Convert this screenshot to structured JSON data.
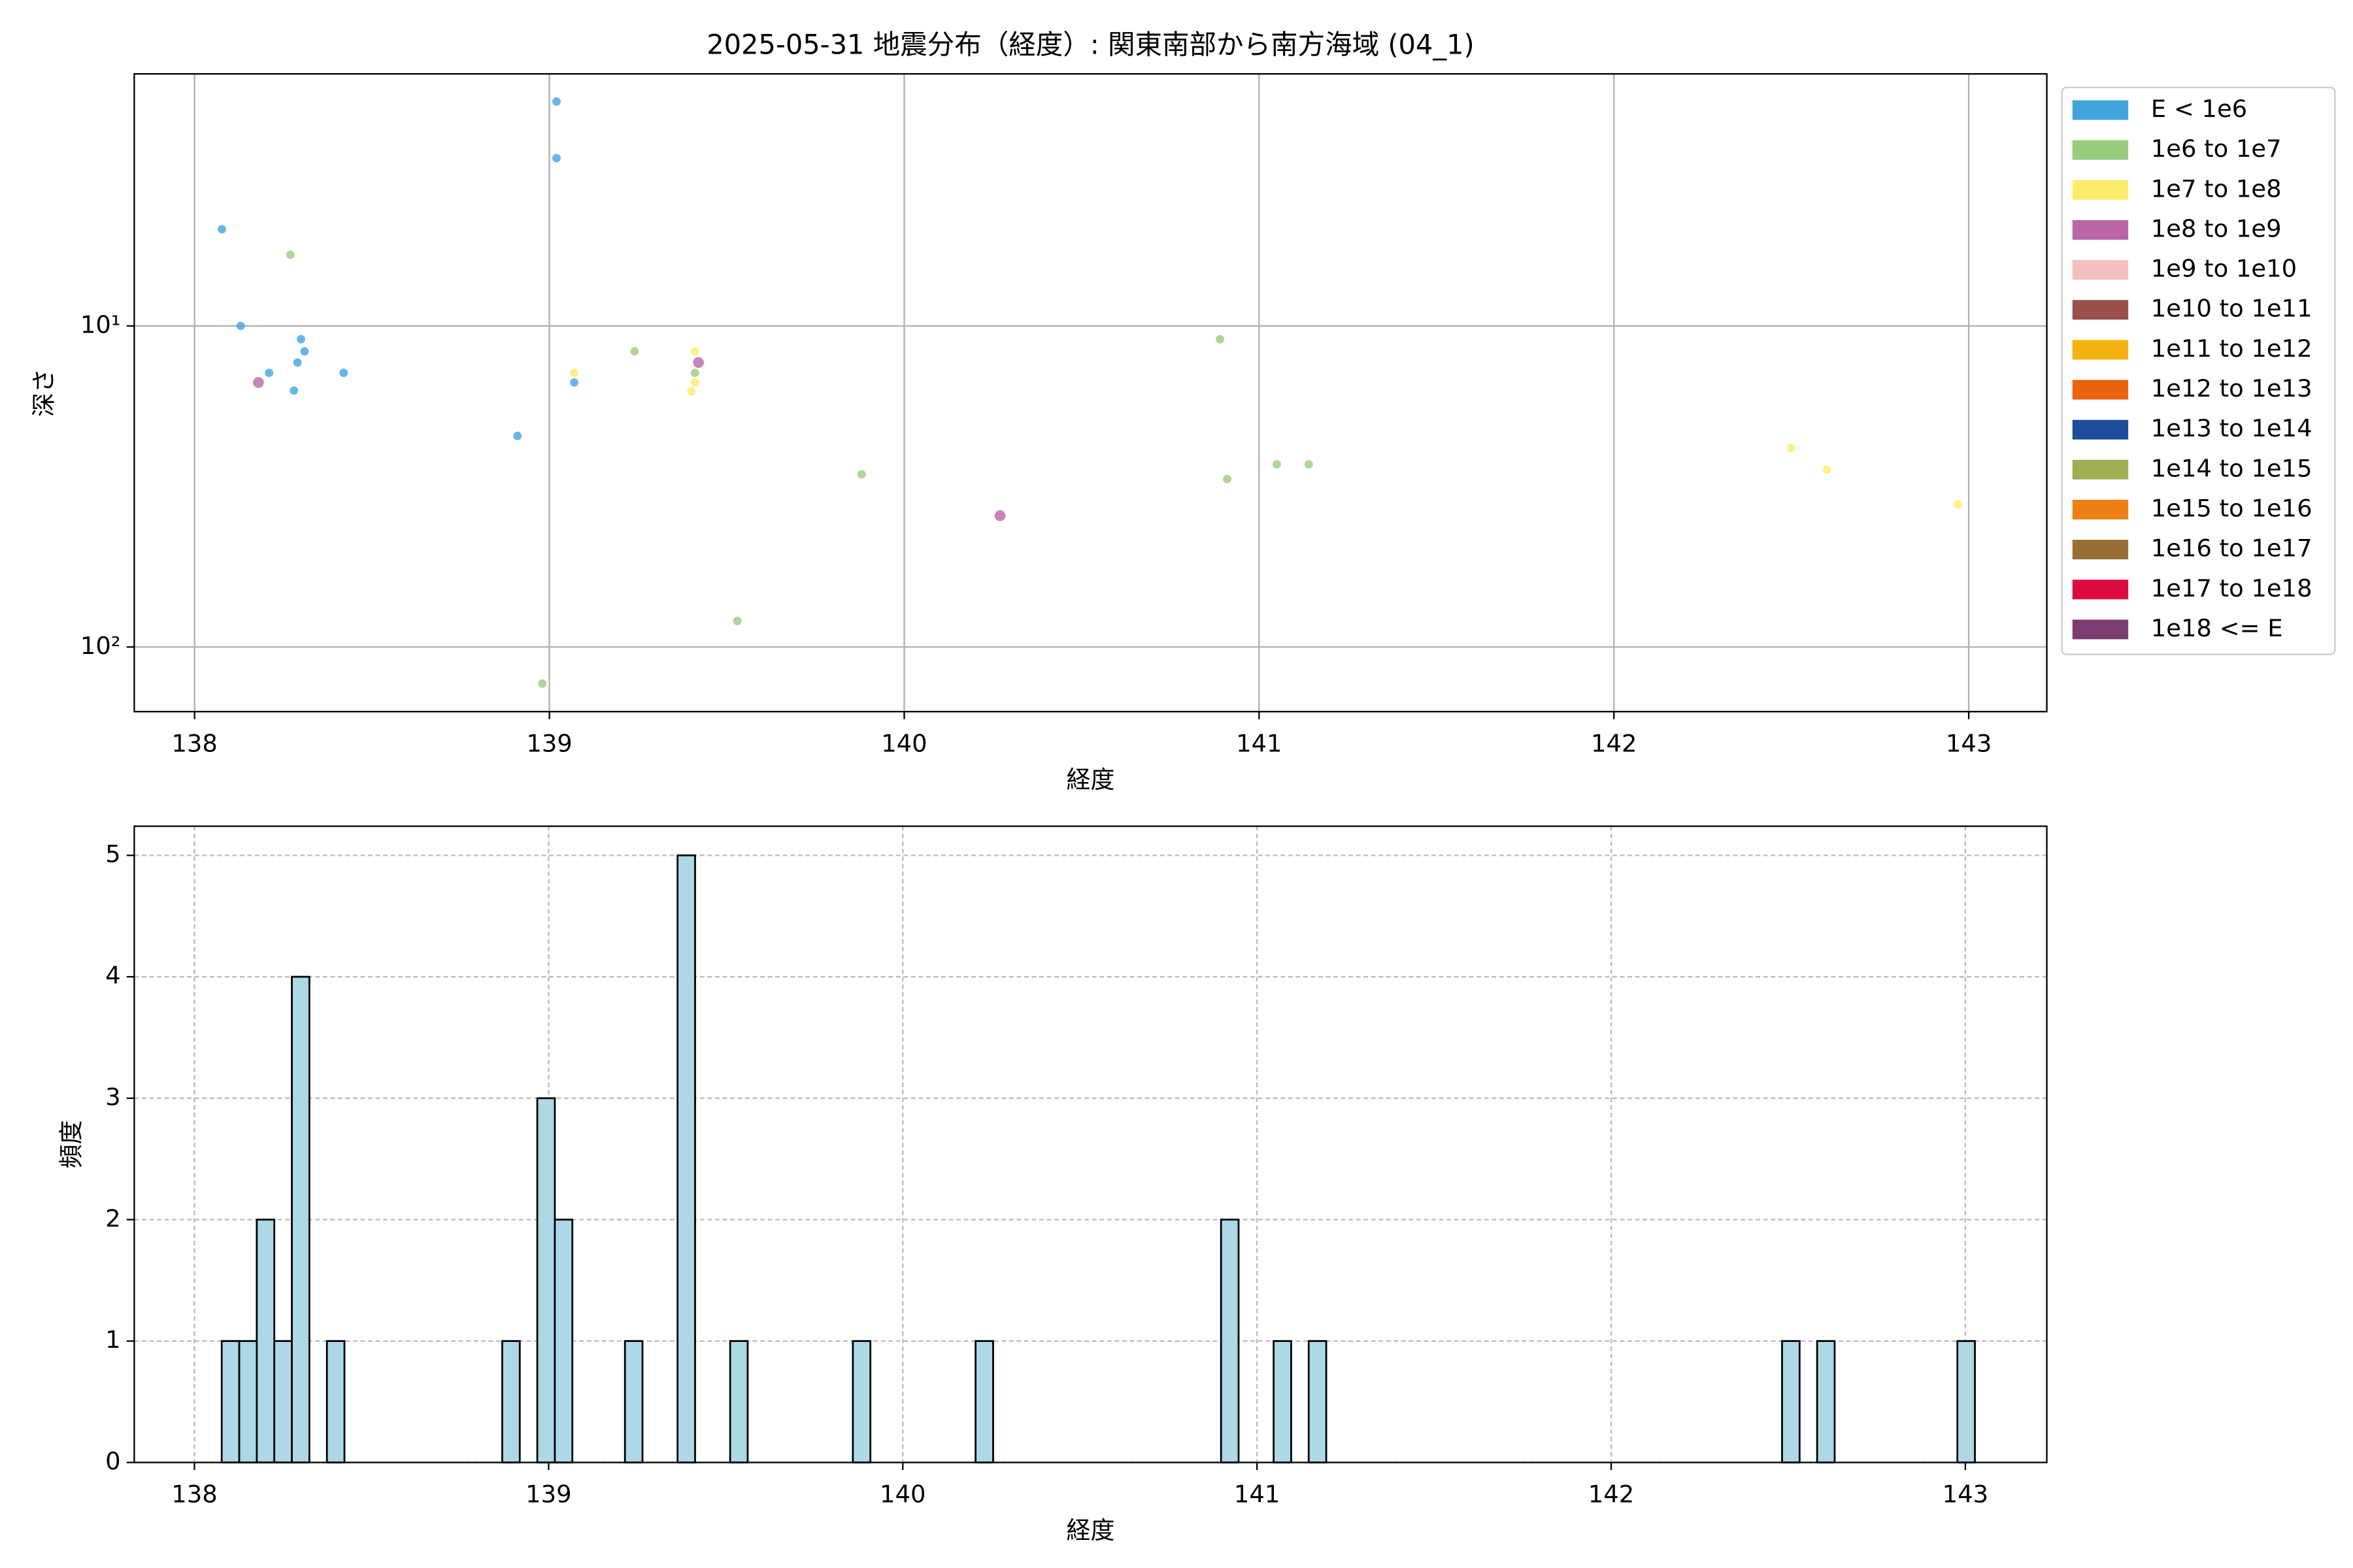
{
  "chart_data": [
    {
      "type": "scatter",
      "title": "2025-05-31 地震分布（経度）: 関東南部から南方海域 (04_1)",
      "xlabel": "経度",
      "ylabel": "深さ",
      "xlim": [
        137.83,
        143.22
      ],
      "xticks": [
        138,
        139,
        140,
        141,
        142,
        143
      ],
      "ylim": [
        1.64,
        159
      ],
      "ylog": true,
      "y_inverted": true,
      "yticks": [
        {
          "value": 10,
          "label": "10¹"
        },
        {
          "value": 100,
          "label": "10²"
        }
      ],
      "grid": true,
      "grid_linestyle": "solid",
      "legend": "outside right",
      "series": [
        {
          "name": "E < 1e6",
          "color": "#41a5dd",
          "x": [
            138.077,
            138.13,
            138.21,
            138.28,
            138.29,
            138.3,
            138.31,
            138.42,
            138.91,
            139.02,
            139.02,
            139.07
          ],
          "values": [
            5.0,
            10,
            14,
            15.9,
            13,
            11,
            12,
            14,
            22,
            2.0,
            3.0,
            15
          ]
        },
        {
          "name": "1e6 to 1e7",
          "color": "#98cd7e",
          "x": [
            138.27,
            139.24,
            139.41,
            139.53,
            138.98,
            139.88,
            140.89,
            140.91,
            141.05,
            141.14
          ],
          "values": [
            6,
            12,
            14,
            83,
            130,
            29,
            11,
            30,
            27,
            27
          ]
        },
        {
          "name": "1e7 to 1e8",
          "color": "#fdec6a",
          "x": [
            139.07,
            139.41,
            139.41,
            139.4,
            142.5,
            142.6,
            142.97
          ],
          "values": [
            14,
            12,
            15,
            16,
            24,
            28,
            36
          ]
        },
        {
          "name": "1e8 to 1e9",
          "color": "#b966a6",
          "x": [
            138.18,
            139.42,
            140.27
          ],
          "values": [
            15,
            13,
            39
          ]
        },
        {
          "name": "1e9 to 1e10",
          "color": "#f4c0bd",
          "x": [],
          "values": []
        },
        {
          "name": "1e10 to 1e11",
          "color": "#9a4f4b",
          "x": [],
          "values": []
        },
        {
          "name": "1e11 to 1e12",
          "color": "#f5b311",
          "x": [],
          "values": []
        },
        {
          "name": "1e12 to 1e13",
          "color": "#e9620e",
          "x": [],
          "values": []
        },
        {
          "name": "1e13 to 1e14",
          "color": "#1d4c9c",
          "x": [],
          "values": []
        },
        {
          "name": "1e14 to 1e15",
          "color": "#9eaf54",
          "x": [],
          "values": []
        },
        {
          "name": "1e15 to 1e16",
          "color": "#ee7f14",
          "x": [],
          "values": []
        },
        {
          "name": "1e16 to 1e17",
          "color": "#967033",
          "x": [],
          "values": []
        },
        {
          "name": "1e17 to 1e18",
          "color": "#dc0c3e",
          "x": [],
          "values": []
        },
        {
          "name": "1e18 <= E",
          "color": "#7b3d6f",
          "x": [],
          "values": []
        }
      ]
    },
    {
      "type": "histogram",
      "xlabel": "経度",
      "ylabel": "頻度",
      "xlim": [
        137.83,
        143.23
      ],
      "xticks": [
        138,
        139,
        140,
        141,
        142,
        143
      ],
      "ylim": [
        0,
        5.24
      ],
      "yticks": [
        0,
        1,
        2,
        3,
        4,
        5
      ],
      "grid": true,
      "grid_linestyle": "dashed",
      "color": "#add8e6",
      "edgecolor": "#000000",
      "bins": [
        138.077,
        138.1265,
        138.176,
        138.2255,
        138.275,
        138.3245,
        138.374,
        138.4235,
        138.473,
        138.5225,
        138.572,
        138.6215,
        138.671,
        138.7205,
        138.77,
        138.8195,
        138.869,
        138.9185,
        138.968,
        139.0175,
        139.067,
        139.1165,
        139.166,
        139.2155,
        139.265,
        139.3145,
        139.364,
        139.4135,
        139.463,
        139.5125,
        139.562,
        139.6115,
        139.661,
        139.7105,
        139.76,
        139.8095,
        139.859,
        139.9085,
        139.958,
        140.0075,
        140.057,
        140.1065,
        140.156,
        140.2055,
        140.255,
        140.3045,
        140.354,
        140.4035,
        140.453,
        140.5025,
        140.552,
        140.6015,
        140.651,
        140.7005,
        140.75,
        140.7995,
        140.849,
        140.8985,
        140.948,
        140.9975,
        141.047,
        141.0965,
        141.146,
        141.1955,
        141.245,
        141.2945,
        141.344,
        141.3935,
        141.443,
        141.4925,
        141.542,
        141.5915,
        141.641,
        141.6905,
        141.74,
        141.7895,
        141.839,
        141.8885,
        141.938,
        141.9875,
        142.037,
        142.0865,
        142.136,
        142.1855,
        142.235,
        142.2845,
        142.334,
        142.3835,
        142.433,
        142.4825,
        142.532,
        142.5815,
        142.631,
        142.6805,
        142.73,
        142.7795,
        142.829,
        142.8785,
        142.928,
        142.9775,
        143.027
      ],
      "values": [
        1,
        1,
        2,
        1,
        4,
        0,
        1,
        0,
        0,
        0,
        0,
        0,
        0,
        0,
        0,
        0,
        1,
        0,
        3,
        2,
        0,
        0,
        0,
        1,
        0,
        0,
        5,
        0,
        0,
        1,
        0,
        0,
        0,
        0,
        0,
        0,
        1,
        0,
        0,
        0,
        0,
        0,
        0,
        1,
        0,
        0,
        0,
        0,
        0,
        0,
        0,
        0,
        0,
        0,
        0,
        0,
        0,
        2,
        0,
        0,
        1,
        0,
        1,
        0,
        0,
        0,
        0,
        0,
        0,
        0,
        0,
        0,
        0,
        0,
        0,
        0,
        0,
        0,
        0,
        0,
        0,
        0,
        0,
        0,
        0,
        0,
        0,
        0,
        0,
        1,
        0,
        1,
        0,
        0,
        0,
        0,
        0,
        0,
        0,
        1
      ]
    }
  ]
}
